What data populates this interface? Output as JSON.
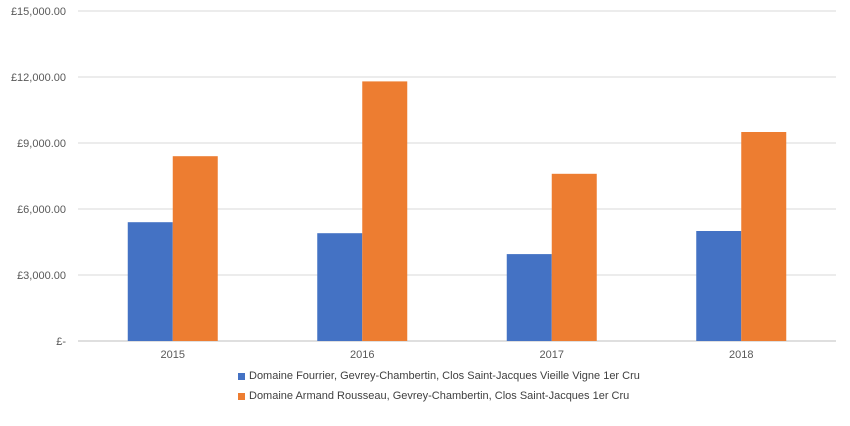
{
  "chart_data": {
    "type": "bar",
    "categories": [
      "2015",
      "2016",
      "2017",
      "2018"
    ],
    "series": [
      {
        "name": "Domaine Fourrier, Gevrey-Chambertin, Clos Saint-Jacques Vieille Vigne 1er Cru",
        "color": "#4472C4",
        "values": [
          5400,
          4900,
          3950,
          5000
        ]
      },
      {
        "name": "Domaine Armand Rousseau, Gevrey-Chambertin, Clos Saint-Jacques 1er Cru",
        "color": "#ED7D31",
        "values": [
          8400,
          11800,
          7600,
          9500
        ]
      }
    ],
    "y_ticks": [
      0,
      3000,
      6000,
      9000,
      12000,
      15000
    ],
    "y_tick_labels": [
      "£-",
      "£3,000.00",
      "£6,000.00",
      "£9,000.00",
      "£12,000.00",
      "£15,000.00"
    ],
    "ylim": [
      0,
      15000
    ],
    "grid": true,
    "legend_position": "bottom",
    "title": "",
    "xlabel": "",
    "ylabel": ""
  }
}
